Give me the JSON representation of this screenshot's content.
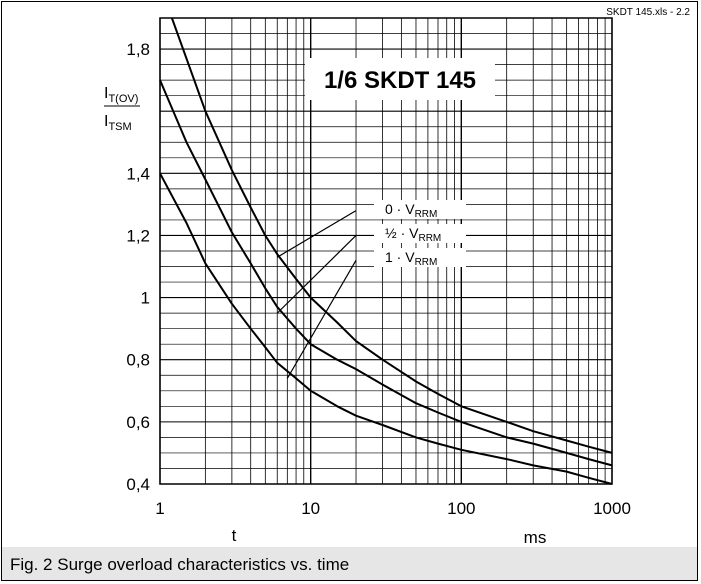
{
  "file_ref": "SKDT 145.xls - 2.2",
  "caption": "Fig. 2 Surge overload characteristics vs. time",
  "chart_data": {
    "type": "line",
    "title": "1/6 SKDT 145",
    "xlabel": "t",
    "xunit": "ms",
    "ylabel_num_main": "I",
    "ylabel_num_sub": "T(OV)",
    "ylabel_den_main": "I",
    "ylabel_den_sub": "TSM",
    "x_scale": "log",
    "xlim": [
      1,
      1000
    ],
    "ylim": [
      0.4,
      1.9
    ],
    "grid": true,
    "x_ticks": [
      {
        "value": 1,
        "label": "1"
      },
      {
        "value": 10,
        "label": "10"
      },
      {
        "value": 100,
        "label": "100"
      },
      {
        "value": 1000,
        "label": "1000"
      }
    ],
    "y_ticks": [
      {
        "value": 0.4,
        "label": "0,4"
      },
      {
        "value": 0.6,
        "label": "0,6"
      },
      {
        "value": 0.8,
        "label": "0,8"
      },
      {
        "value": 1.0,
        "label": "1"
      },
      {
        "value": 1.2,
        "label": "1,2"
      },
      {
        "value": 1.4,
        "label": "1,4"
      },
      {
        "value": 1.8,
        "label": "1,8"
      }
    ],
    "series": [
      {
        "name_prefix": "0 · V",
        "name_sub": "RRM",
        "x": [
          1.2,
          2,
          3,
          4,
          5,
          6,
          8,
          10,
          15,
          20,
          30,
          50,
          70,
          100,
          200,
          300,
          500,
          700,
          1000
        ],
        "y": [
          1.9,
          1.6,
          1.41,
          1.29,
          1.2,
          1.14,
          1.06,
          1.0,
          0.92,
          0.86,
          0.8,
          0.73,
          0.69,
          0.65,
          0.6,
          0.57,
          0.54,
          0.52,
          0.5
        ]
      },
      {
        "name_prefix": "½ · V",
        "name_sub": "RRM",
        "x": [
          1,
          1.5,
          2,
          3,
          4,
          5,
          6,
          8,
          10,
          15,
          20,
          30,
          50,
          70,
          100,
          200,
          300,
          500,
          700,
          1000
        ],
        "y": [
          1.7,
          1.5,
          1.38,
          1.21,
          1.11,
          1.03,
          0.97,
          0.9,
          0.85,
          0.8,
          0.77,
          0.72,
          0.66,
          0.63,
          0.6,
          0.55,
          0.53,
          0.5,
          0.48,
          0.46
        ]
      },
      {
        "name_prefix": "1 · V",
        "name_sub": "RRM",
        "x": [
          1,
          1.5,
          2,
          3,
          4,
          5,
          6,
          8,
          10,
          15,
          20,
          30,
          50,
          70,
          100,
          200,
          300,
          500,
          700,
          1000
        ],
        "y": [
          1.4,
          1.24,
          1.11,
          0.98,
          0.9,
          0.84,
          0.79,
          0.74,
          0.7,
          0.65,
          0.62,
          0.59,
          0.55,
          0.53,
          0.51,
          0.48,
          0.46,
          0.44,
          0.42,
          0.4
        ]
      }
    ],
    "leaders": [
      {
        "from": [
          6,
          1.13
        ],
        "to": [
          20,
          1.28
        ]
      },
      {
        "from": [
          6,
          0.95
        ],
        "to": [
          20,
          1.2
        ]
      },
      {
        "from": [
          7,
          0.74
        ],
        "to": [
          20,
          1.12
        ]
      }
    ]
  }
}
